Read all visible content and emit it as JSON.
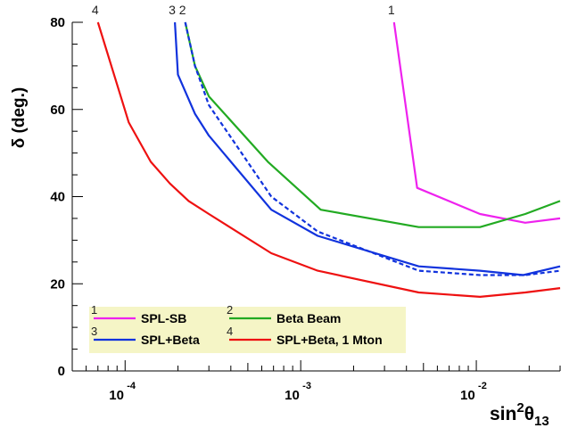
{
  "chart_data": {
    "type": "line",
    "title": "",
    "xlabel_base": "sin",
    "xlabel_sup": "2",
    "xlabel_sym": "θ",
    "xlabel_sub": "13",
    "ylabel": "δ (deg.)",
    "x_scale": "log",
    "xlim": [
      5e-05,
      0.03
    ],
    "ylim": [
      0,
      80
    ],
    "y_ticks": [
      0,
      20,
      40,
      60,
      80
    ],
    "x_major_ticks": [
      0.0001,
      0.001,
      0.01
    ],
    "x_tick_labels": [
      {
        "base": "10",
        "exp": "-4"
      },
      {
        "base": "10",
        "exp": "-3"
      },
      {
        "base": "10",
        "exp": "-2"
      }
    ],
    "grid": false,
    "legend_position": "bottom-left",
    "series": [
      {
        "name": "SPL-SB",
        "number": "1",
        "color": "#ee22ee",
        "dash": false,
        "points": [
          [
            0.0034,
            80
          ],
          [
            0.0046,
            42
          ],
          [
            0.0105,
            36
          ],
          [
            0.019,
            34
          ],
          [
            0.03,
            35
          ]
        ]
      },
      {
        "name": "Beta Beam",
        "number": "2",
        "color": "#22aa22",
        "dash": false,
        "points": [
          [
            0.00022,
            80
          ],
          [
            0.00025,
            70
          ],
          [
            0.0003,
            63
          ],
          [
            0.00065,
            48
          ],
          [
            0.0013,
            37
          ],
          [
            0.0047,
            33
          ],
          [
            0.0105,
            33
          ],
          [
            0.019,
            36
          ],
          [
            0.03,
            39
          ]
        ]
      },
      {
        "name": "SPL+Beta",
        "number": "3",
        "color": "#1133dd",
        "dash": false,
        "points": [
          [
            0.000192,
            80
          ],
          [
            0.0002,
            68
          ],
          [
            0.00025,
            59
          ],
          [
            0.0003,
            54
          ],
          [
            0.00068,
            37
          ],
          [
            0.00125,
            31
          ],
          [
            0.0047,
            24
          ],
          [
            0.0105,
            23
          ],
          [
            0.0185,
            22
          ],
          [
            0.03,
            24
          ]
        ]
      },
      {
        "name": "",
        "number": "",
        "color": "#1133dd",
        "dash": true,
        "points": [
          [
            0.00022,
            80
          ],
          [
            0.00025,
            70
          ],
          [
            0.0003,
            61
          ],
          [
            0.00068,
            40
          ],
          [
            0.00125,
            32
          ],
          [
            0.0047,
            23
          ],
          [
            0.0105,
            22
          ],
          [
            0.019,
            22
          ],
          [
            0.03,
            23
          ]
        ]
      },
      {
        "name": "SPL+Beta, 1 Mton",
        "number": "4",
        "color": "#ee1111",
        "dash": false,
        "points": [
          [
            7e-05,
            80
          ],
          [
            0.000105,
            57
          ],
          [
            0.00014,
            48
          ],
          [
            0.00018,
            43
          ],
          [
            0.00023,
            39
          ],
          [
            0.0003,
            36
          ],
          [
            0.00068,
            27
          ],
          [
            0.00125,
            23
          ],
          [
            0.0047,
            18
          ],
          [
            0.0105,
            17
          ],
          [
            0.019,
            18
          ],
          [
            0.03,
            19
          ]
        ]
      }
    ]
  }
}
